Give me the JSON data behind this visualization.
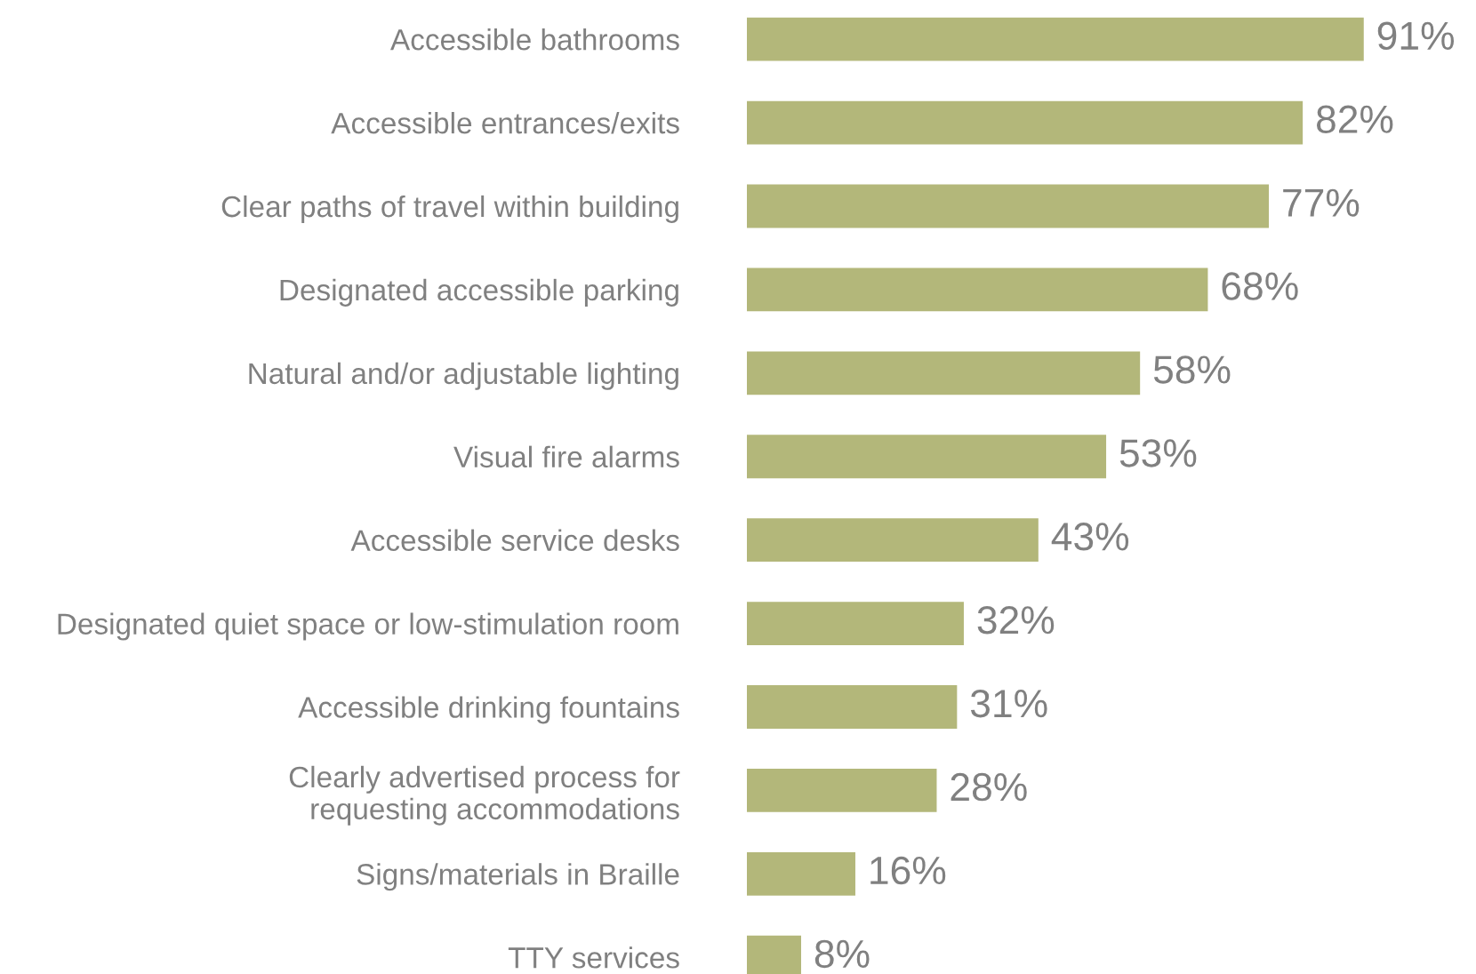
{
  "chart_data": {
    "type": "bar",
    "orientation": "horizontal",
    "categories": [
      "Accessible bathrooms",
      "Accessible entrances/exits",
      "Clear paths of travel within building",
      "Designated accessible parking",
      "Natural and/or adjustable lighting",
      "Visual fire alarms",
      "Accessible service desks",
      "Designated quiet space or low-stimulation room",
      "Accessible drinking fountains",
      "Clearly advertised process for\nrequesting accommodations",
      "Signs/materials in Braille",
      "TTY services"
    ],
    "values": [
      91,
      82,
      77,
      68,
      58,
      53,
      43,
      32,
      31,
      28,
      16,
      8
    ],
    "value_labels": [
      "91%",
      "82%",
      "77%",
      "68%",
      "58%",
      "53%",
      "43%",
      "32%",
      "31%",
      "28%",
      "16%",
      "8%"
    ],
    "color": "#b3b77a"
  }
}
